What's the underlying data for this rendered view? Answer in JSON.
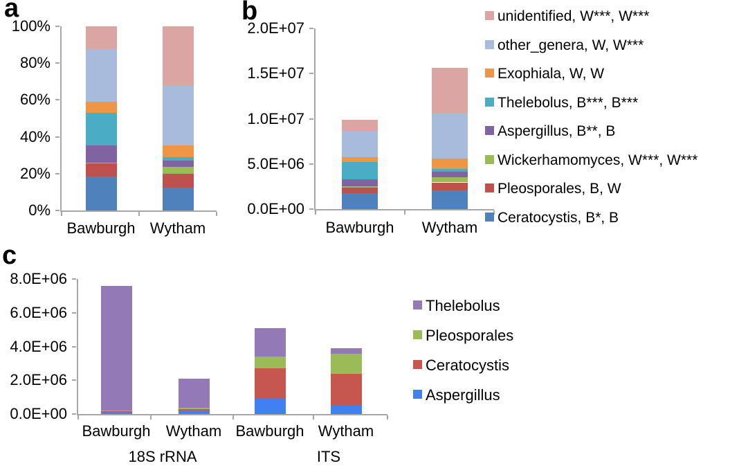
{
  "figure": {
    "background": "#FFFFFF",
    "axis_color": "#A6A6A6",
    "text_color": "#000000"
  },
  "chart_data": [
    {
      "id": "a",
      "panel_label": "a",
      "type": "bar",
      "subtype": "stacked-percentage",
      "title": "",
      "xlabel": "",
      "ylabel": "",
      "grid": false,
      "categories": [
        "Bawburgh",
        "Wytham"
      ],
      "ylim": [
        0,
        100
      ],
      "y_tick_labels": [
        "100%",
        "80%",
        "60%",
        "40%",
        "20%",
        "0%"
      ],
      "series": [
        {
          "name": "Ceratocystis",
          "color": "#4F81BD",
          "values": [
            18.5,
            12.5
          ]
        },
        {
          "name": "Pleosporales",
          "color": "#C0504D",
          "values": [
            6.9,
            7.5
          ]
        },
        {
          "name": "Wickerhamomyces",
          "color": "#9BBB59",
          "values": [
            0.4,
            3.5
          ]
        },
        {
          "name": "Aspergillus",
          "color": "#8064A2",
          "values": [
            9.6,
            3.5
          ]
        },
        {
          "name": "Thelebolus",
          "color": "#4BACC6",
          "values": [
            17.5,
            2.0
          ]
        },
        {
          "name": "Exophiala",
          "color": "#EE9546",
          "values": [
            6.3,
            6.5
          ]
        },
        {
          "name": "other_genera",
          "color": "#A8BBDC",
          "values": [
            28.4,
            32.0
          ]
        },
        {
          "name": "unidentified",
          "color": "#DAA5A3",
          "values": [
            12.4,
            32.5
          ]
        }
      ]
    },
    {
      "id": "b",
      "panel_label": "b",
      "type": "bar",
      "subtype": "stacked-absolute",
      "title": "",
      "xlabel": "",
      "ylabel": "",
      "grid": false,
      "categories": [
        "Bawburgh",
        "Wytham"
      ],
      "ylim": [
        0,
        20000000
      ],
      "y_tick_labels": [
        "2.0E+07",
        "1.5E+07",
        "1.0E+07",
        "5.0E+06",
        "0.0E+00"
      ],
      "series": [
        {
          "name": "Ceratocystis",
          "color": "#4F81BD",
          "values": [
            1750000,
            2050000
          ]
        },
        {
          "name": "Pleosporales",
          "color": "#C0504D",
          "values": [
            600000,
            900000
          ]
        },
        {
          "name": "Wickerhamomyces",
          "color": "#9BBB59",
          "values": [
            150000,
            550000
          ]
        },
        {
          "name": "Aspergillus",
          "color": "#8064A2",
          "values": [
            800000,
            600000
          ]
        },
        {
          "name": "Thelebolus",
          "color": "#4BACC6",
          "values": [
            1900000,
            350000
          ]
        },
        {
          "name": "Exophiala",
          "color": "#EE9546",
          "values": [
            550000,
            1150000
          ]
        },
        {
          "name": "other_genera",
          "color": "#A8BBDC",
          "values": [
            2900000,
            4950000
          ]
        },
        {
          "name": "unidentified",
          "color": "#DAA5A3",
          "values": [
            1250000,
            5050000
          ]
        }
      ],
      "legend_position": "right",
      "legend_entries": [
        {
          "label": "unidentified, W***, W***",
          "color": "#DAA5A3"
        },
        {
          "label": "other_genera, W, W***",
          "color": "#A8BBDC"
        },
        {
          "label": "Exophiala, W, W",
          "color": "#EE9546"
        },
        {
          "label": "Thelebolus, B***, B***",
          "color": "#4BACC6"
        },
        {
          "label": "Aspergillus, B**, B",
          "color": "#8064A2"
        },
        {
          "label": "Wickerhamomyces, W***, W***",
          "color": "#9BBB59"
        },
        {
          "label": "Pleosporales, B, W",
          "color": "#C0504D"
        },
        {
          "label": "Ceratocystis, B*, B",
          "color": "#4F81BD"
        }
      ]
    },
    {
      "id": "c",
      "panel_label": "c",
      "type": "bar",
      "subtype": "stacked-absolute",
      "title": "",
      "xlabel": "",
      "ylabel": "",
      "grid": false,
      "categories": [
        "Bawburgh",
        "Wytham",
        "Bawburgh",
        "Wytham"
      ],
      "group_labels": [
        "18S rRNA",
        "ITS"
      ],
      "ylim": [
        0,
        8000000
      ],
      "y_tick_labels": [
        "8.0E+06",
        "6.0E+06",
        "4.0E+06",
        "2.0E+06",
        "0.0E+00"
      ],
      "series": [
        {
          "name": "Aspergillus",
          "color": "#4080F0",
          "values": [
            100000,
            200000,
            900000,
            500000
          ]
        },
        {
          "name": "Ceratocystis",
          "color": "#C5574F",
          "values": [
            50000,
            80000,
            1800000,
            1900000
          ]
        },
        {
          "name": "Pleosporales",
          "color": "#9BBB59",
          "values": [
            50000,
            70000,
            700000,
            1150000
          ]
        },
        {
          "name": "Thelebolus",
          "color": "#9379B5",
          "values": [
            7400000,
            1750000,
            1700000,
            350000
          ]
        }
      ],
      "legend_position": "right",
      "legend_entries": [
        {
          "label": "Thelebolus",
          "color": "#9379B5"
        },
        {
          "label": "Pleosporales",
          "color": "#9BBB59"
        },
        {
          "label": "Ceratocystis",
          "color": "#C5574F"
        },
        {
          "label": "Aspergillus",
          "color": "#4080F0"
        }
      ]
    }
  ]
}
